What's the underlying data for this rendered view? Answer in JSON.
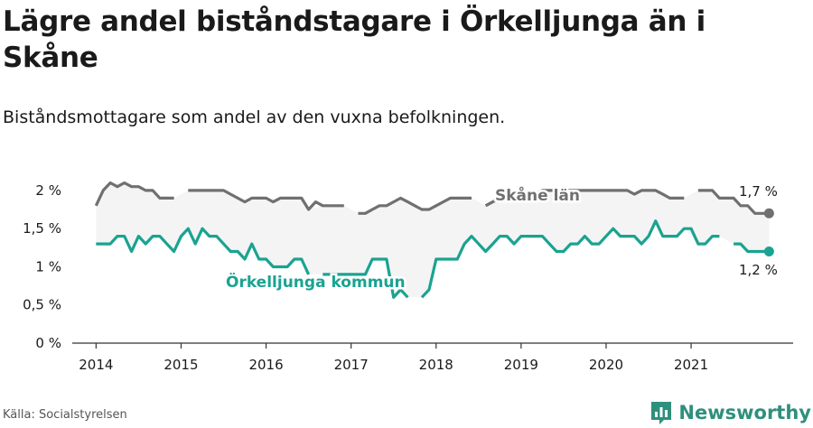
{
  "title": "Lägre andel biståndstagare i Örkelljunga än i Skåne",
  "subtitle": "Biståndsmottagare som andel av den vuxna befolkningen.",
  "source": "Källa: Socialstyrelsen",
  "brand": "Newsworthy",
  "colors": {
    "skane": "#707070",
    "orkelljunga": "#1aa391",
    "band": "#f4f4f4",
    "axis": "#333333",
    "text": "#1a1a1a",
    "brand": "#2f8f7d"
  },
  "chart_data": {
    "type": "line",
    "ylim": [
      0,
      2.2
    ],
    "xlim": [
      2013.72,
      2022.2
    ],
    "y_ticks": [
      {
        "value": 0,
        "label": "0 %"
      },
      {
        "value": 0.5,
        "label": "0,5 %"
      },
      {
        "value": 1,
        "label": "1 %"
      },
      {
        "value": 1.5,
        "label": "1,5 %"
      },
      {
        "value": 2,
        "label": "2 %"
      }
    ],
    "x_ticks": [
      {
        "value": 2014,
        "label": "2014"
      },
      {
        "value": 2015,
        "label": "2015"
      },
      {
        "value": 2016,
        "label": "2016"
      },
      {
        "value": 2017,
        "label": "2017"
      },
      {
        "value": 2018,
        "label": "2018"
      },
      {
        "value": 2019,
        "label": "2019"
      },
      {
        "value": 2020,
        "label": "2020"
      },
      {
        "value": 2021,
        "label": "2021"
      }
    ],
    "series": [
      {
        "name": "Skåne län",
        "key": "skane",
        "end_label": "1,7 %",
        "points": [
          [
            2014.0,
            1.8
          ],
          [
            2014.083,
            2.0
          ],
          [
            2014.167,
            2.1
          ],
          [
            2014.25,
            2.05
          ],
          [
            2014.333,
            2.1
          ],
          [
            2014.417,
            2.05
          ],
          [
            2014.5,
            2.05
          ],
          [
            2014.583,
            2.0
          ],
          [
            2014.667,
            2.0
          ],
          [
            2014.75,
            1.9
          ],
          [
            2014.833,
            1.9
          ],
          [
            2014.917,
            1.9
          ],
          [
            2015.0,
            null
          ],
          [
            2015.083,
            2.0
          ],
          [
            2015.167,
            2.0
          ],
          [
            2015.25,
            2.0
          ],
          [
            2015.333,
            2.0
          ],
          [
            2015.417,
            2.0
          ],
          [
            2015.5,
            2.0
          ],
          [
            2015.583,
            1.95
          ],
          [
            2015.667,
            1.9
          ],
          [
            2015.75,
            1.85
          ],
          [
            2015.833,
            1.9
          ],
          [
            2015.917,
            1.9
          ],
          [
            2016.0,
            1.9
          ],
          [
            2016.083,
            1.85
          ],
          [
            2016.167,
            1.9
          ],
          [
            2016.25,
            1.9
          ],
          [
            2016.333,
            1.9
          ],
          [
            2016.417,
            1.9
          ],
          [
            2016.5,
            1.75
          ],
          [
            2016.583,
            1.85
          ],
          [
            2016.667,
            1.8
          ],
          [
            2016.75,
            1.8
          ],
          [
            2016.833,
            1.8
          ],
          [
            2016.917,
            1.8
          ],
          [
            2017.0,
            null
          ],
          [
            2017.083,
            1.7
          ],
          [
            2017.167,
            1.7
          ],
          [
            2017.25,
            1.75
          ],
          [
            2017.333,
            1.8
          ],
          [
            2017.417,
            1.8
          ],
          [
            2017.5,
            1.85
          ],
          [
            2017.583,
            1.9
          ],
          [
            2017.667,
            1.85
          ],
          [
            2017.75,
            1.8
          ],
          [
            2017.833,
            1.75
          ],
          [
            2017.917,
            1.75
          ],
          [
            2018.0,
            1.8
          ],
          [
            2018.083,
            1.85
          ],
          [
            2018.167,
            1.9
          ],
          [
            2018.25,
            1.9
          ],
          [
            2018.333,
            1.9
          ],
          [
            2018.417,
            1.9
          ],
          [
            2018.5,
            null
          ],
          [
            2018.583,
            1.8
          ],
          [
            2018.667,
            1.85
          ],
          [
            2018.75,
            1.9
          ],
          [
            2018.833,
            1.9
          ],
          [
            2018.917,
            1.9
          ],
          [
            2019.0,
            1.9
          ],
          [
            2019.083,
            1.9
          ],
          [
            2019.167,
            1.95
          ],
          [
            2019.25,
            2.0
          ],
          [
            2019.333,
            2.0
          ],
          [
            2019.417,
            2.0
          ],
          [
            2019.5,
            2.0
          ],
          [
            2019.583,
            2.0
          ],
          [
            2019.667,
            2.0
          ],
          [
            2019.75,
            2.0
          ],
          [
            2019.833,
            2.0
          ],
          [
            2019.917,
            2.0
          ],
          [
            2020.0,
            2.0
          ],
          [
            2020.083,
            2.0
          ],
          [
            2020.167,
            2.0
          ],
          [
            2020.25,
            2.0
          ],
          [
            2020.333,
            1.95
          ],
          [
            2020.417,
            2.0
          ],
          [
            2020.5,
            2.0
          ],
          [
            2020.583,
            2.0
          ],
          [
            2020.667,
            1.95
          ],
          [
            2020.75,
            1.9
          ],
          [
            2020.833,
            1.9
          ],
          [
            2020.917,
            1.9
          ],
          [
            2021.0,
            null
          ],
          [
            2021.083,
            2.0
          ],
          [
            2021.167,
            2.0
          ],
          [
            2021.25,
            2.0
          ],
          [
            2021.333,
            1.9
          ],
          [
            2021.417,
            1.9
          ],
          [
            2021.5,
            1.9
          ],
          [
            2021.583,
            1.8
          ],
          [
            2021.667,
            1.8
          ],
          [
            2021.75,
            1.7
          ],
          [
            2021.833,
            1.7
          ],
          [
            2021.917,
            1.7
          ]
        ]
      },
      {
        "name": "Örkelljunga kommun",
        "key": "orkelljunga",
        "end_label": "1,2 %",
        "points": [
          [
            2014.0,
            1.3
          ],
          [
            2014.083,
            1.3
          ],
          [
            2014.167,
            1.3
          ],
          [
            2014.25,
            1.4
          ],
          [
            2014.333,
            1.4
          ],
          [
            2014.417,
            1.2
          ],
          [
            2014.5,
            1.4
          ],
          [
            2014.583,
            1.3
          ],
          [
            2014.667,
            1.4
          ],
          [
            2014.75,
            1.4
          ],
          [
            2014.833,
            1.3
          ],
          [
            2014.917,
            1.2
          ],
          [
            2015.0,
            1.4
          ],
          [
            2015.083,
            1.5
          ],
          [
            2015.167,
            1.3
          ],
          [
            2015.25,
            1.5
          ],
          [
            2015.333,
            1.4
          ],
          [
            2015.417,
            1.4
          ],
          [
            2015.5,
            1.3
          ],
          [
            2015.583,
            1.2
          ],
          [
            2015.667,
            1.2
          ],
          [
            2015.75,
            1.1
          ],
          [
            2015.833,
            1.3
          ],
          [
            2015.917,
            1.1
          ],
          [
            2016.0,
            1.1
          ],
          [
            2016.083,
            1.0
          ],
          [
            2016.167,
            1.0
          ],
          [
            2016.25,
            1.0
          ],
          [
            2016.333,
            1.1
          ],
          [
            2016.417,
            1.1
          ],
          [
            2016.5,
            0.9
          ],
          [
            2016.583,
            null
          ],
          [
            2016.667,
            0.9
          ],
          [
            2016.75,
            0.9
          ],
          [
            2016.833,
            0.9
          ],
          [
            2016.917,
            0.9
          ],
          [
            2017.0,
            0.9
          ],
          [
            2017.083,
            0.9
          ],
          [
            2017.167,
            0.9
          ],
          [
            2017.25,
            1.1
          ],
          [
            2017.333,
            1.1
          ],
          [
            2017.417,
            1.1
          ],
          [
            2017.5,
            0.6
          ],
          [
            2017.583,
            0.7
          ],
          [
            2017.667,
            0.6
          ],
          [
            2017.75,
            null
          ],
          [
            2017.833,
            0.6
          ],
          [
            2017.917,
            0.7
          ],
          [
            2018.0,
            1.1
          ],
          [
            2018.083,
            1.1
          ],
          [
            2018.167,
            1.1
          ],
          [
            2018.25,
            1.1
          ],
          [
            2018.333,
            1.3
          ],
          [
            2018.417,
            1.4
          ],
          [
            2018.5,
            1.3
          ],
          [
            2018.583,
            1.2
          ],
          [
            2018.667,
            1.3
          ],
          [
            2018.75,
            1.4
          ],
          [
            2018.833,
            1.4
          ],
          [
            2018.917,
            1.3
          ],
          [
            2019.0,
            1.4
          ],
          [
            2019.083,
            1.4
          ],
          [
            2019.167,
            1.4
          ],
          [
            2019.25,
            1.4
          ],
          [
            2019.333,
            1.3
          ],
          [
            2019.417,
            1.2
          ],
          [
            2019.5,
            1.2
          ],
          [
            2019.583,
            1.3
          ],
          [
            2019.667,
            1.3
          ],
          [
            2019.75,
            1.4
          ],
          [
            2019.833,
            1.3
          ],
          [
            2019.917,
            1.3
          ],
          [
            2020.0,
            1.4
          ],
          [
            2020.083,
            1.5
          ],
          [
            2020.167,
            1.4
          ],
          [
            2020.25,
            1.4
          ],
          [
            2020.333,
            1.4
          ],
          [
            2020.417,
            1.3
          ],
          [
            2020.5,
            1.4
          ],
          [
            2020.583,
            1.6
          ],
          [
            2020.667,
            1.4
          ],
          [
            2020.75,
            1.4
          ],
          [
            2020.833,
            1.4
          ],
          [
            2020.917,
            1.5
          ],
          [
            2021.0,
            1.5
          ],
          [
            2021.083,
            1.3
          ],
          [
            2021.167,
            1.3
          ],
          [
            2021.25,
            1.4
          ],
          [
            2021.333,
            1.4
          ],
          [
            2021.417,
            null
          ],
          [
            2021.5,
            1.3
          ],
          [
            2021.583,
            1.3
          ],
          [
            2021.667,
            1.2
          ],
          [
            2021.75,
            1.2
          ],
          [
            2021.833,
            1.2
          ],
          [
            2021.917,
            1.2
          ]
        ]
      }
    ]
  }
}
